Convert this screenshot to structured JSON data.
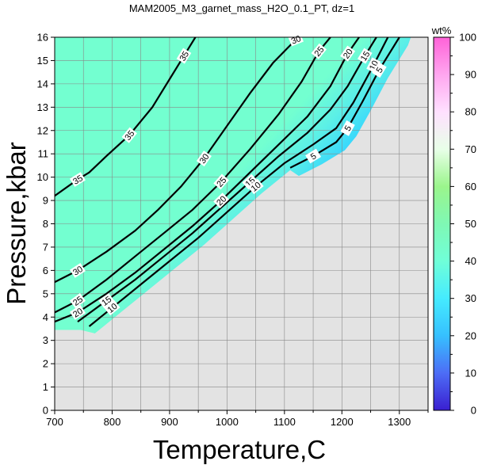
{
  "chart_data": {
    "type": "contour",
    "title": "MAM2005_M3_garnet_mass_H2O_0.1_PT, dz=1",
    "xlabel": "Temperature,C",
    "ylabel": "Pressure,kbar",
    "xlim": [
      700,
      1350
    ],
    "ylim": [
      0,
      16
    ],
    "x_ticks": [
      700,
      800,
      900,
      1000,
      1100,
      1200,
      1300
    ],
    "y_ticks": [
      0,
      1,
      2,
      3,
      4,
      5,
      6,
      7,
      8,
      9,
      10,
      11,
      12,
      13,
      14,
      15,
      16
    ],
    "grid": true,
    "colorbar": {
      "label": "wt%",
      "range": [
        0,
        100
      ],
      "ticks": [
        0,
        10,
        20,
        30,
        40,
        50,
        60,
        70,
        80,
        90,
        100
      ],
      "colors": [
        "#3a1fd0",
        "#5f7dff",
        "#34d5ff",
        "#73ffd8",
        "#8ff59a",
        "#e9ffe9",
        "#ffd7ff",
        "#ff66dd"
      ]
    },
    "contour_levels_labeled": [
      5,
      10,
      15,
      20,
      25,
      30,
      35
    ],
    "contours": [
      {
        "level": 35,
        "points": [
          [
            700,
            9.2
          ],
          [
            740,
            9.9
          ],
          [
            760,
            10.2
          ],
          [
            790,
            10.9
          ],
          [
            830,
            11.8
          ],
          [
            870,
            13.0
          ],
          [
            900,
            14.2
          ],
          [
            925,
            15.2
          ],
          [
            945,
            16.0
          ]
        ]
      },
      {
        "level": 30,
        "points": [
          [
            700,
            5.5
          ],
          [
            740,
            6.0
          ],
          [
            790,
            6.8
          ],
          [
            840,
            7.7
          ],
          [
            880,
            8.6
          ],
          [
            920,
            9.6
          ],
          [
            960,
            10.8
          ],
          [
            1000,
            12.2
          ],
          [
            1040,
            13.6
          ],
          [
            1080,
            14.9
          ],
          [
            1120,
            15.9
          ],
          [
            1130,
            16.0
          ]
        ]
      },
      {
        "level": 25,
        "points": [
          [
            700,
            4.2
          ],
          [
            740,
            4.7
          ],
          [
            790,
            5.6
          ],
          [
            840,
            6.6
          ],
          [
            890,
            7.6
          ],
          [
            940,
            8.6
          ],
          [
            990,
            9.8
          ],
          [
            1040,
            11.2
          ],
          [
            1090,
            12.7
          ],
          [
            1130,
            14.1
          ],
          [
            1160,
            15.4
          ],
          [
            1180,
            16.0
          ]
        ]
      },
      {
        "level": 20,
        "points": [
          [
            700,
            3.8
          ],
          [
            740,
            4.2
          ],
          [
            790,
            5.0
          ],
          [
            840,
            5.9
          ],
          [
            890,
            6.9
          ],
          [
            940,
            7.9
          ],
          [
            990,
            9.0
          ],
          [
            1040,
            10.2
          ],
          [
            1090,
            11.4
          ],
          [
            1140,
            12.6
          ],
          [
            1180,
            13.9
          ],
          [
            1210,
            15.3
          ],
          [
            1230,
            16.0
          ]
        ]
      },
      {
        "level": 15,
        "points": [
          [
            740,
            3.8
          ],
          [
            790,
            4.7
          ],
          [
            840,
            5.6
          ],
          [
            890,
            6.6
          ],
          [
            940,
            7.6
          ],
          [
            990,
            8.7
          ],
          [
            1040,
            9.8
          ],
          [
            1090,
            10.9
          ],
          [
            1140,
            11.9
          ],
          [
            1180,
            12.9
          ],
          [
            1210,
            13.9
          ],
          [
            1240,
            15.2
          ],
          [
            1260,
            16.0
          ]
        ]
      },
      {
        "level": 10,
        "points": [
          [
            760,
            3.6
          ],
          [
            800,
            4.4
          ],
          [
            850,
            5.4
          ],
          [
            900,
            6.4
          ],
          [
            950,
            7.4
          ],
          [
            1000,
            8.5
          ],
          [
            1050,
            9.6
          ],
          [
            1100,
            10.6
          ],
          [
            1150,
            11.4
          ],
          [
            1190,
            12.1
          ],
          [
            1220,
            13.2
          ],
          [
            1255,
            14.8
          ],
          [
            1280,
            16.0
          ]
        ]
      },
      {
        "level": 5,
        "points": [
          [
            1110,
            10.4
          ],
          [
            1150,
            10.9
          ],
          [
            1190,
            11.5
          ],
          [
            1210,
            12.1
          ],
          [
            1235,
            13.2
          ],
          [
            1265,
            14.6
          ],
          [
            1300,
            16.0
          ]
        ]
      }
    ]
  }
}
